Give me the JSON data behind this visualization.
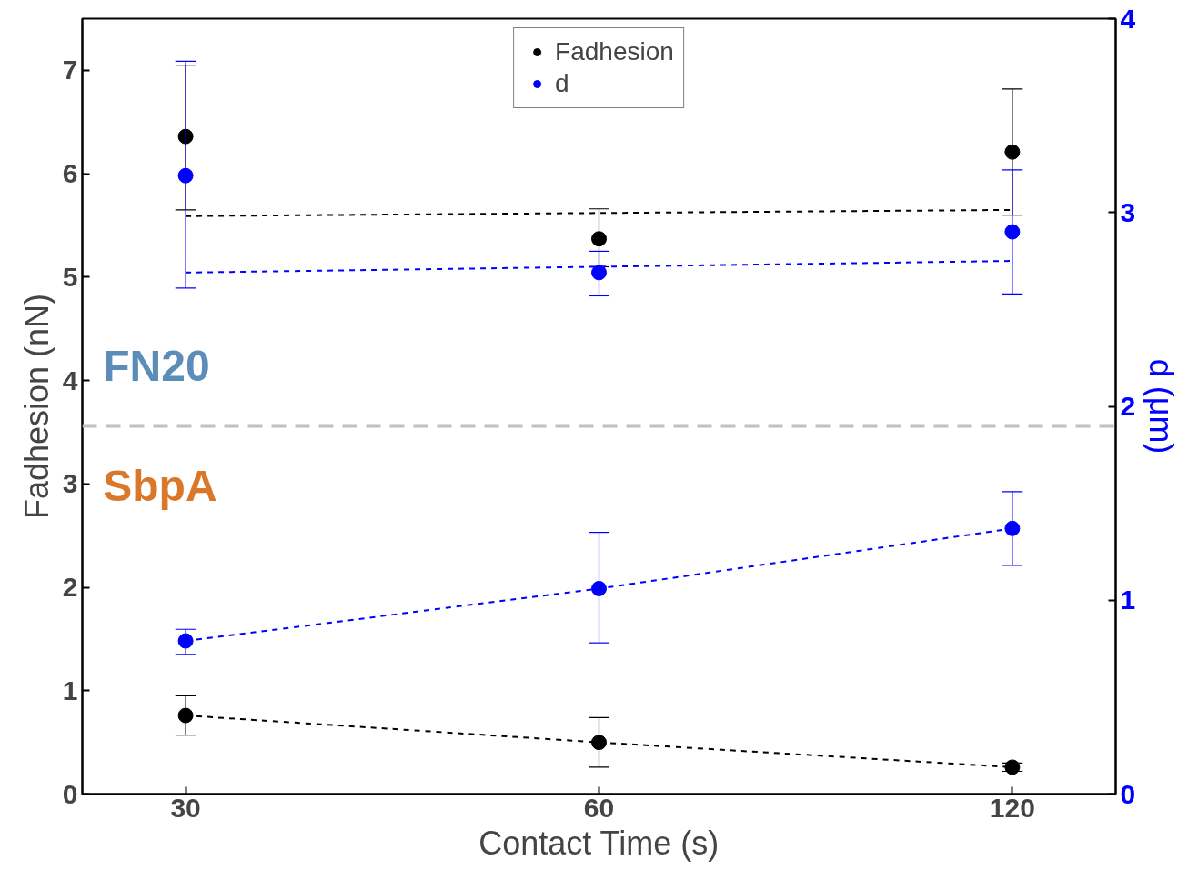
{
  "chart_data": {
    "type": "scatter",
    "xlabel": "Contact Time (s)",
    "ylabel": "Fadhesion (nN)",
    "y2label": "d (μm)",
    "categories": [
      "30",
      "60",
      "120"
    ],
    "ylim": [
      0,
      7.5
    ],
    "yticks": [
      0,
      1,
      2,
      3,
      4,
      5,
      6,
      7
    ],
    "y2lim": [
      0,
      4
    ],
    "y2ticks": [
      0,
      1,
      2,
      3,
      4
    ],
    "marker": "circle",
    "legend": "top",
    "grid": false,
    "series": [
      {
        "name": "Fadhesion",
        "color": "#000000",
        "values": [
          6.36,
          5.37,
          6.21
        ],
        "errors": [
          [
            5.65,
            7.05
          ],
          [
            5.1,
            5.66
          ],
          [
            5.6,
            6.82
          ]
        ]
      },
      {
        "name": "d",
        "color": "#0000ff",
        "axis": "y2",
        "values": [
          3.19,
          2.69,
          2.9
        ],
        "errors": [
          [
            2.61,
            3.78
          ],
          [
            2.57,
            2.8
          ],
          [
            2.58,
            3.22
          ]
        ]
      },
      {
        "color": "#000000",
        "values": [
          0.76,
          0.5,
          0.26
        ],
        "errors": [
          [
            0.57,
            0.95
          ],
          [
            0.26,
            0.74
          ],
          [
            0.22,
            0.3
          ]
        ]
      },
      {
        "color": "#0000ff",
        "axis": "y2",
        "values": [
          0.79,
          1.06,
          1.37
        ],
        "errors": [
          [
            0.72,
            0.85
          ],
          [
            0.78,
            1.35
          ],
          [
            1.18,
            1.56
          ]
        ]
      },
      {
        "type": "line",
        "marker": "none",
        "line_style": "dashed",
        "color": "#000000",
        "x": [
          "30",
          "120"
        ],
        "values": [
          5.59,
          5.65
        ]
      },
      {
        "type": "line",
        "marker": "none",
        "line_style": "dashed",
        "color": "#0000ff",
        "axis": "y2",
        "x": [
          "30",
          "120"
        ],
        "values": [
          2.69,
          2.75
        ]
      },
      {
        "type": "line",
        "marker": "none",
        "line_style": "dashed",
        "color": "#000000",
        "x": [
          "30",
          "60",
          "120"
        ],
        "values": [
          0.76,
          0.5,
          0.26
        ]
      },
      {
        "type": "line",
        "marker": "none",
        "line_style": "dashed",
        "color": "#0000ff",
        "axis": "y2",
        "x": [
          "30",
          "60",
          "120"
        ],
        "values": [
          0.79,
          1.06,
          1.37
        ]
      }
    ],
    "ref_lines": [
      {
        "axis": "y",
        "value": 3.56,
        "color": "#c0c0c0",
        "line_style": "dashed"
      }
    ],
    "annotations": [
      "FN20",
      "SbpA"
    ]
  }
}
